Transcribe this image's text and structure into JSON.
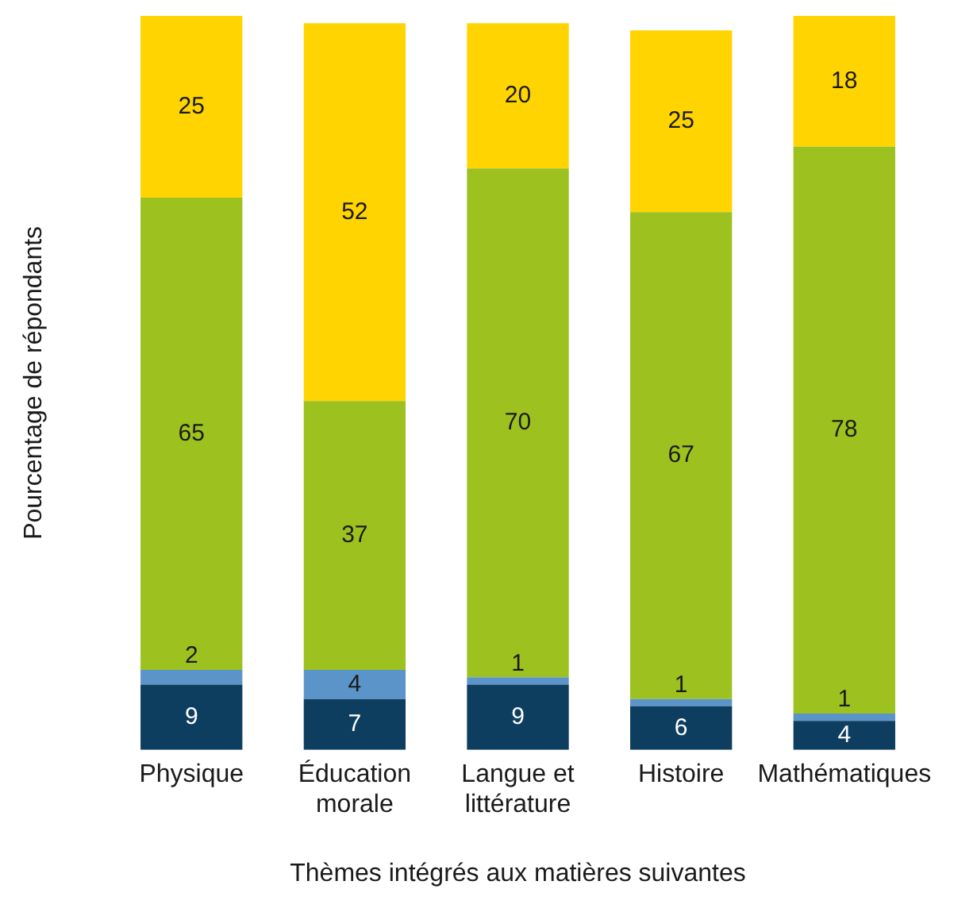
{
  "chart_data": {
    "type": "bar",
    "stacked": true,
    "data_labels": true,
    "legend": false,
    "grid": false,
    "xlabel": "Thèmes intégrés aux matières suivantes",
    "ylabel": "Pourcentage de répondants",
    "categories": [
      "Physique",
      "Éducation morale",
      "Langue et littérature",
      "Histoire",
      "Mathématiques"
    ],
    "series": [
      {
        "color": "#0e3e5f",
        "values": [
          9,
          7,
          9,
          6,
          4
        ]
      },
      {
        "color": "#5b94c8",
        "values": [
          2,
          4,
          1,
          1,
          1
        ]
      },
      {
        "color": "#9dc11f",
        "values": [
          65,
          37,
          70,
          67,
          78
        ]
      },
      {
        "color": "#ffd400",
        "values": [
          25,
          52,
          20,
          25,
          18
        ]
      }
    ]
  }
}
